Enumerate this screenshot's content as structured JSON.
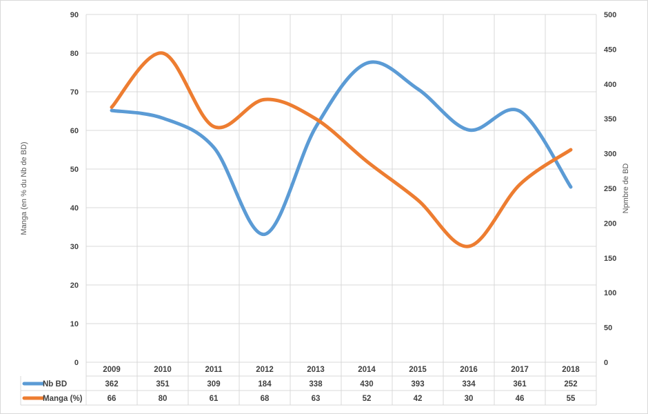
{
  "chart_data": {
    "type": "line",
    "categories": [
      "2009",
      "2010",
      "2011",
      "2012",
      "2013",
      "2014",
      "2015",
      "2016",
      "2017",
      "2018"
    ],
    "series": [
      {
        "name": "Nb BD",
        "axis": "right",
        "color": "#5B9BD5",
        "values": [
          362,
          351,
          309,
          184,
          338,
          430,
          393,
          334,
          361,
          252
        ]
      },
      {
        "name": "Manga (%)",
        "axis": "left",
        "color": "#ED7D31",
        "values": [
          66,
          80,
          61,
          68,
          63,
          52,
          42,
          30,
          46,
          55
        ]
      }
    ],
    "ylabel": "Manga (en % du Nb de BD)",
    "y2label": "Npmbre de BD",
    "ylim": [
      0,
      90
    ],
    "y2lim": [
      0,
      500
    ],
    "yticks": [
      "0",
      "10",
      "20",
      "30",
      "40",
      "50",
      "60",
      "70",
      "80",
      "90"
    ],
    "y2ticks": [
      "0",
      "50",
      "100",
      "150",
      "200",
      "250",
      "300",
      "350",
      "400",
      "450",
      "500"
    ],
    "grid": true,
    "legend": "data-table-bottom"
  }
}
